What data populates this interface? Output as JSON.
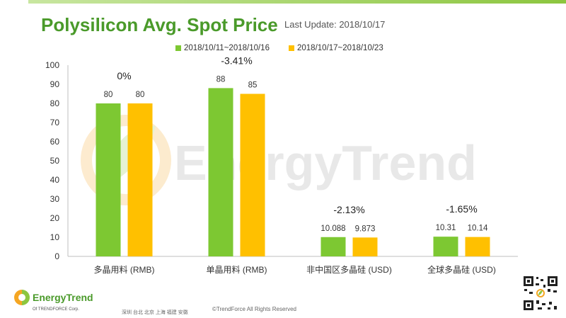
{
  "header": {
    "title": "Polysilicon Avg. Spot Price",
    "last_update": "Last Update: 2018/10/17"
  },
  "colors": {
    "series1": "#7dc832",
    "series2": "#ffc000",
    "title": "#4a9a2a"
  },
  "chart_data": {
    "type": "bar",
    "categories": [
      "多晶用料 (RMB)",
      "单晶用料 (RMB)",
      "非中国区多晶硅 (USD)",
      "全球多晶硅 (USD)"
    ],
    "series": [
      {
        "name": "2018/10/11~2018/10/16",
        "values": [
          80,
          88,
          10.088,
          10.31
        ],
        "labels": [
          "80",
          "88",
          "10.088",
          "10.31"
        ]
      },
      {
        "name": "2018/10/17~2018/10/23",
        "values": [
          80,
          85,
          9.873,
          10.14
        ],
        "labels": [
          "80",
          "85",
          "9.873",
          "10.14"
        ]
      }
    ],
    "changes": [
      "0%",
      "-3.41%",
      "-2.13%",
      "-1.65%"
    ],
    "ylim": [
      0,
      100
    ],
    "yticks": [
      0,
      10,
      20,
      30,
      40,
      50,
      60,
      70,
      80,
      90,
      100
    ],
    "title": "Polysilicon Avg. Spot Price",
    "xlabel": "",
    "ylabel": "",
    "legend_position": "top",
    "grid": false
  },
  "watermark": "EnergyTrend",
  "footer": {
    "logo_text": "EnergyTrend",
    "logo_sub": "Of TRENDFORCE Corp.",
    "cities": "深圳 台北 北京 上海 福建 安徽",
    "copyright": "©TrendForce All Rights Reserved"
  }
}
